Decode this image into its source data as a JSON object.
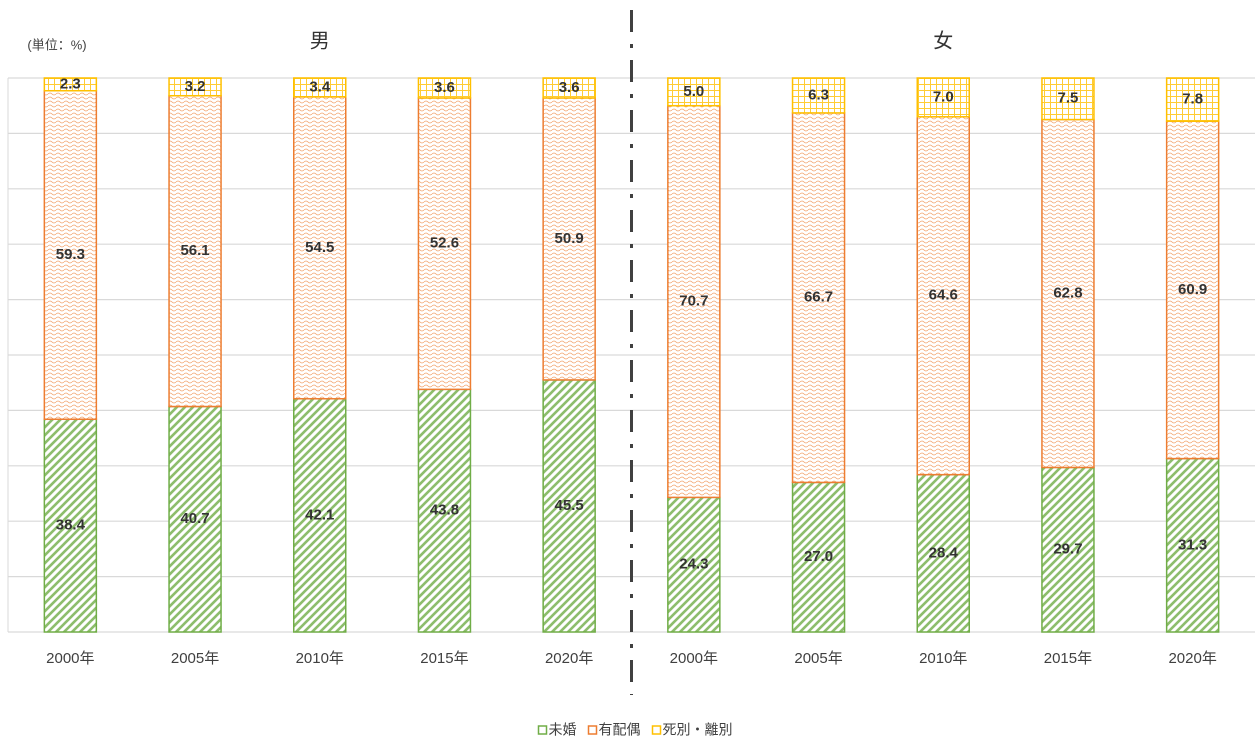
{
  "chart_data": {
    "type": "stacked_bar",
    "unit_label": "(単位：%)",
    "groups": [
      {
        "label": "男",
        "size": 5
      },
      {
        "label": "女",
        "size": 5
      }
    ],
    "categories": [
      "2000年",
      "2005年",
      "2010年",
      "2015年",
      "2020年",
      "2000年",
      "2005年",
      "2010年",
      "2015年",
      "2020年"
    ],
    "series": [
      {
        "name": "未婚",
        "color": "#70ad47",
        "pattern": "diagonal",
        "values": [
          38.4,
          40.7,
          42.1,
          43.8,
          45.5,
          24.3,
          27.0,
          28.4,
          29.7,
          31.3
        ],
        "value_labels": [
          "38.4",
          "40.7",
          "42.1",
          "43.8",
          "45.5",
          "24.3",
          "27.0",
          "28.4",
          "29.7",
          "31.3"
        ]
      },
      {
        "name": "有配偶",
        "color": "#ed7d31",
        "pattern": "wave",
        "values": [
          59.3,
          56.1,
          54.5,
          52.6,
          50.9,
          70.7,
          66.7,
          64.6,
          62.8,
          60.9
        ],
        "value_labels": [
          "59.3",
          "56.1",
          "54.5",
          "52.6",
          "50.9",
          "70.7",
          "66.7",
          "64.6",
          "62.8",
          "60.9"
        ]
      },
      {
        "name": "死別・離別",
        "color": "#ffc000",
        "pattern": "grid",
        "values": [
          2.3,
          3.2,
          3.4,
          3.6,
          3.6,
          5.0,
          6.3,
          7.0,
          7.5,
          7.8
        ],
        "value_labels": [
          "2.3",
          "3.2",
          "3.4",
          "3.6",
          "3.6",
          "5.0",
          "6.3",
          "7.0",
          "7.5",
          "7.8"
        ]
      }
    ],
    "ylim": [
      0,
      100
    ],
    "yticks": [
      0,
      10,
      20,
      30,
      40,
      50,
      60,
      70,
      80,
      90,
      100
    ],
    "grid": true,
    "legend": "bottom"
  }
}
